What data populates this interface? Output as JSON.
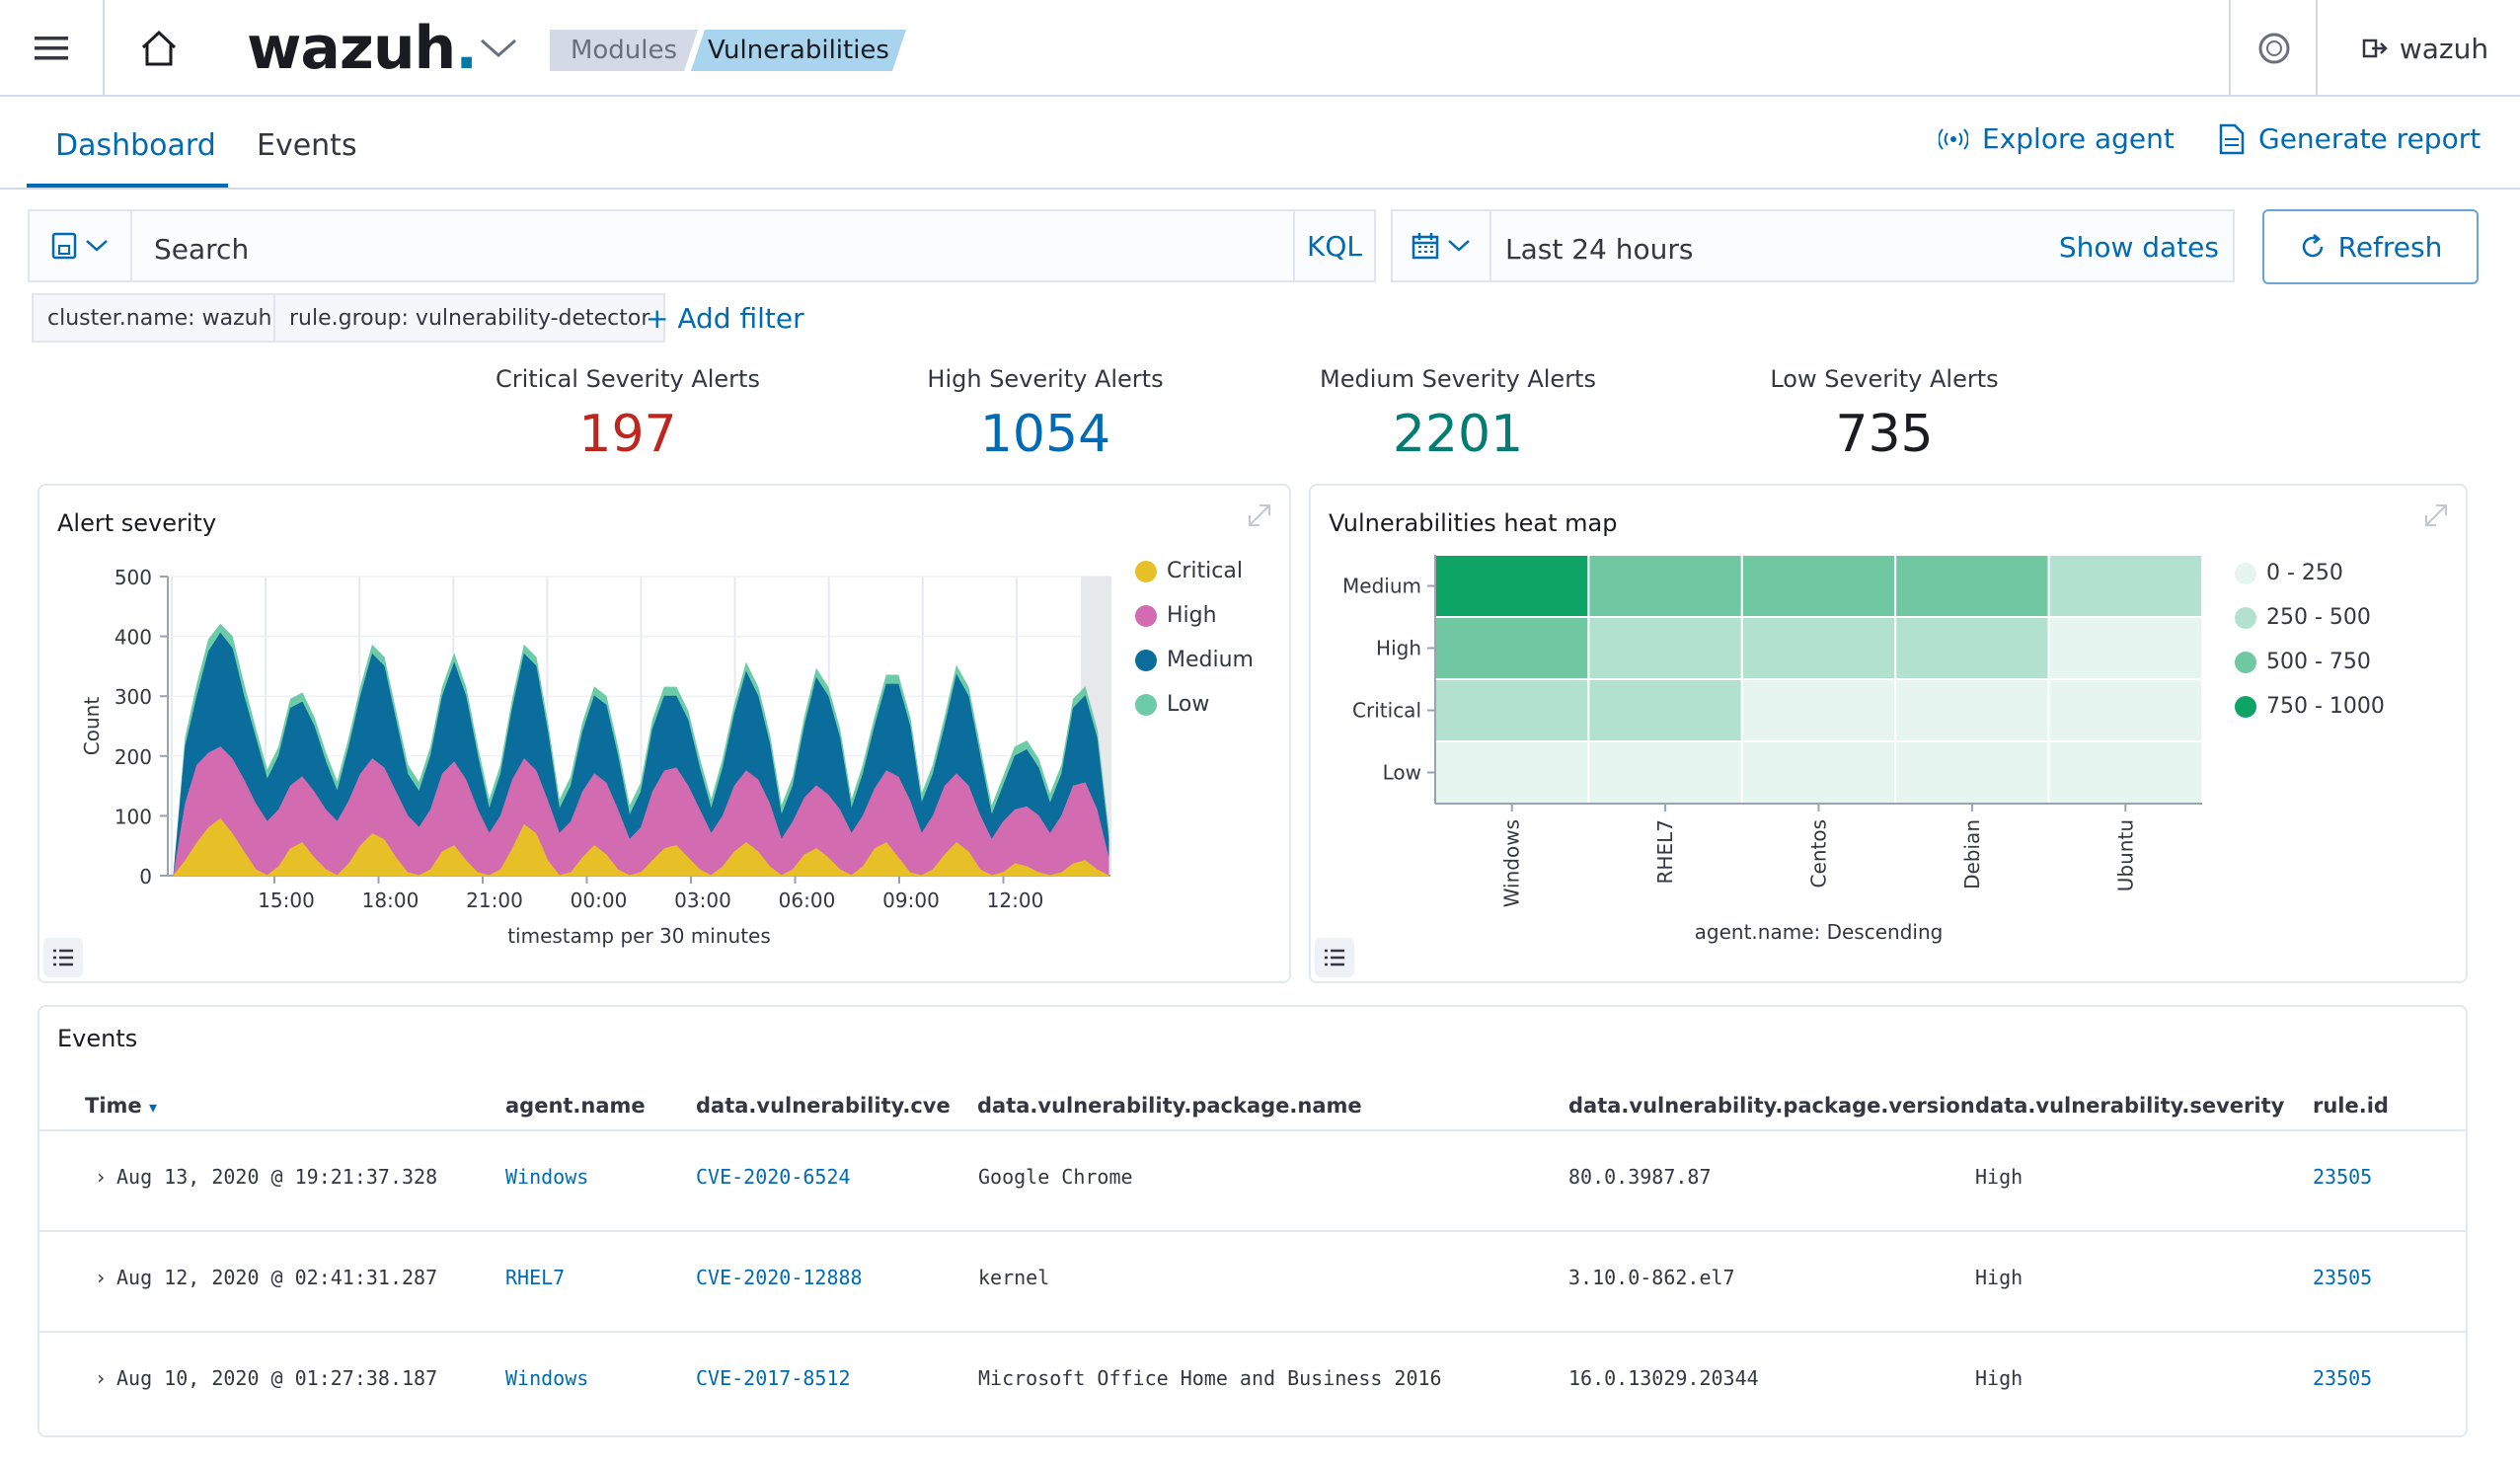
{
  "header": {
    "logo": "wazuh",
    "logo_dot": ".",
    "breadcrumbs": [
      "Modules",
      "Vulnerabilities"
    ],
    "user": "wazuh"
  },
  "tabs": {
    "dashboard": "Dashboard",
    "events": "Events"
  },
  "actions": {
    "explore_agent": "Explore agent",
    "generate_report": "Generate report"
  },
  "search": {
    "placeholder": "Search",
    "kql": "KQL"
  },
  "date": {
    "range": "Last 24 hours",
    "show_dates": "Show dates",
    "refresh": "Refresh"
  },
  "filters": [
    "cluster.name: wazuh",
    "rule.group: vulnerability-detector"
  ],
  "add_filter": "+ Add filter",
  "metrics": [
    {
      "label": "Critical Severity Alerts",
      "value": "197",
      "color": "#bd271e"
    },
    {
      "label": "High Severity Alerts",
      "value": "1054",
      "color": "#006bb4"
    },
    {
      "label": "Medium Severity Alerts",
      "value": "2201",
      "color": "#017d73"
    },
    {
      "label": "Low Severity Alerts",
      "value": "735",
      "color": "#1a1c21"
    }
  ],
  "alert_panel": {
    "title": "Alert severity"
  },
  "heat_panel": {
    "title": "Vulnerabilities heat map"
  },
  "chart_data": [
    {
      "type": "area",
      "title": "Alert severity",
      "xlabel": "timestamp per 30 minutes",
      "ylabel": "Count",
      "ylim": [
        0,
        500
      ],
      "yticks": [
        "0",
        "100",
        "200",
        "300",
        "400",
        "500"
      ],
      "xticks": [
        "15:00",
        "18:00",
        "21:00",
        "00:00",
        "03:00",
        "06:00",
        "09:00",
        "12:00"
      ],
      "series": [
        {
          "name": "Critical",
          "color": "#e7c027",
          "values": [
            0,
            25,
            55,
            80,
            95,
            70,
            40,
            10,
            0,
            15,
            45,
            55,
            30,
            10,
            0,
            20,
            50,
            70,
            60,
            30,
            5,
            0,
            10,
            40,
            50,
            25,
            5,
            0,
            10,
            45,
            85,
            70,
            25,
            0,
            5,
            30,
            50,
            35,
            10,
            0,
            5,
            25,
            45,
            50,
            30,
            10,
            0,
            15,
            40,
            55,
            40,
            15,
            0,
            10,
            35,
            45,
            30,
            10,
            0,
            15,
            45,
            55,
            30,
            5,
            0,
            10,
            35,
            55,
            40,
            10,
            0,
            5,
            20,
            15,
            5,
            0,
            5,
            20,
            25,
            10,
            0
          ]
        },
        {
          "name": "High",
          "color": "#d36bb0",
          "values": [
            0,
            120,
            185,
            205,
            215,
            195,
            160,
            120,
            90,
            110,
            150,
            165,
            140,
            110,
            90,
            125,
            170,
            195,
            180,
            140,
            100,
            80,
            110,
            170,
            190,
            160,
            110,
            70,
            100,
            160,
            195,
            175,
            125,
            70,
            90,
            140,
            170,
            155,
            110,
            60,
            80,
            140,
            175,
            180,
            150,
            110,
            70,
            100,
            150,
            175,
            160,
            120,
            60,
            90,
            130,
            150,
            135,
            110,
            70,
            100,
            145,
            175,
            165,
            125,
            70,
            100,
            150,
            170,
            150,
            100,
            60,
            90,
            110,
            115,
            100,
            70,
            100,
            150,
            155,
            110,
            30
          ]
        },
        {
          "name": "Medium",
          "color": "#0a6d9b",
          "values": [
            0,
            215,
            300,
            375,
            405,
            380,
            300,
            230,
            160,
            200,
            280,
            290,
            250,
            190,
            140,
            215,
            300,
            370,
            350,
            260,
            170,
            140,
            200,
            300,
            355,
            300,
            200,
            110,
            170,
            280,
            370,
            350,
            240,
            110,
            150,
            240,
            300,
            285,
            200,
            100,
            140,
            245,
            300,
            300,
            260,
            180,
            110,
            180,
            270,
            340,
            300,
            220,
            100,
            150,
            250,
            330,
            300,
            230,
            110,
            170,
            250,
            320,
            320,
            250,
            120,
            170,
            250,
            335,
            300,
            200,
            100,
            150,
            200,
            210,
            180,
            120,
            170,
            280,
            300,
            230,
            60
          ]
        },
        {
          "name": "Low",
          "color": "#6dcca8",
          "values": [
            0,
            230,
            320,
            395,
            420,
            400,
            320,
            245,
            175,
            215,
            295,
            305,
            265,
            205,
            155,
            230,
            315,
            385,
            365,
            275,
            185,
            155,
            215,
            315,
            370,
            315,
            215,
            125,
            185,
            295,
            385,
            365,
            255,
            125,
            165,
            255,
            315,
            300,
            215,
            115,
            155,
            260,
            315,
            315,
            275,
            195,
            125,
            195,
            285,
            355,
            315,
            235,
            115,
            165,
            265,
            345,
            315,
            245,
            125,
            185,
            265,
            335,
            335,
            265,
            135,
            185,
            265,
            350,
            315,
            215,
            115,
            165,
            215,
            225,
            195,
            135,
            185,
            295,
            315,
            245,
            75
          ]
        }
      ]
    },
    {
      "type": "heatmap",
      "title": "Vulnerabilities heat map",
      "xlabel": "agent.name: Descending",
      "x": [
        "Windows",
        "RHEL7",
        "Centos",
        "Debian",
        "Ubuntu"
      ],
      "y": [
        "Medium",
        "High",
        "Critical",
        "Low"
      ],
      "values": [
        [
          900,
          600,
          600,
          600,
          400
        ],
        [
          600,
          400,
          400,
          400,
          100
        ],
        [
          400,
          400,
          100,
          100,
          100
        ],
        [
          100,
          100,
          100,
          100,
          100
        ]
      ],
      "legend": [
        {
          "label": "0 - 250",
          "color": "#e6f5ef"
        },
        {
          "label": "250 - 500",
          "color": "#b2e2cf"
        },
        {
          "label": "500 - 750",
          "color": "#6fc8a2"
        },
        {
          "label": "750 - 1000",
          "color": "#0ea466"
        }
      ]
    }
  ],
  "events": {
    "title": "Events",
    "columns": [
      "Time",
      "agent.name",
      "data.vulnerability.cve",
      "data.vulnerability.package.name",
      "data.vulnerability.package.version",
      "data.vulnerability.severity",
      "rule.id"
    ],
    "rows": [
      [
        "Aug 13, 2020 @ 19:21:37.328",
        "Windows",
        "CVE-2020-6524",
        "Google Chrome",
        "80.0.3987.87",
        "High",
        "23505"
      ],
      [
        "Aug 12, 2020 @ 02:41:31.287",
        "RHEL7",
        "CVE-2020-12888",
        "kernel",
        "3.10.0-862.el7",
        "High",
        "23505"
      ],
      [
        "Aug 10, 2020 @ 01:27:38.187",
        "Windows",
        "CVE-2017-8512",
        "Microsoft Office Home and Business 2016",
        "16.0.13029.20344",
        "High",
        "23505"
      ]
    ]
  }
}
